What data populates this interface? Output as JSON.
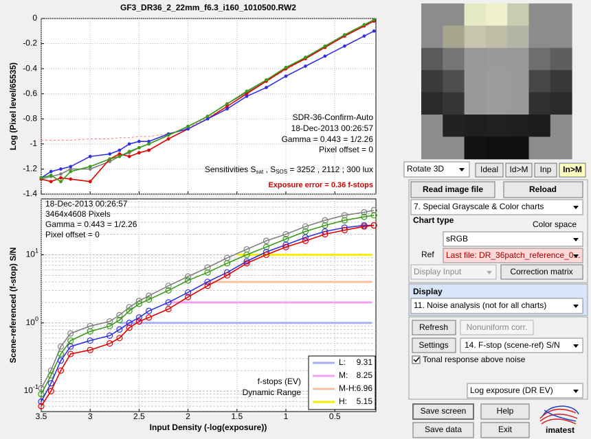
{
  "window": {
    "rotate": "Rotate 3D",
    "ideal": "Ideal",
    "idm": "Id>M",
    "inp": "Inp",
    "inm": "In>M",
    "read": "Read image file",
    "reload": "Reload",
    "chart_menu": "7.  Special Grayscale & Color charts",
    "chart_type": "Chart type",
    "color_space": "Color space",
    "srgb": "sRGB",
    "ref": "Ref",
    "ref_file": "Last file: DR_36patch_reference_0...",
    "display_input": "Display Input",
    "correction": "Correction matrix",
    "display": "Display",
    "display_menu": "11. Noise analysis (not for all charts)",
    "refresh": "Refresh",
    "nonuniform": "Nonuniform corr.",
    "settings": "Settings",
    "settings_menu": "14. F-stop (scene-ref) S/N",
    "tonal": "Tonal response above noise",
    "log_exposure": "Log exposure (DR EV)",
    "save_screen": "Save screen",
    "help": "Help",
    "save_data": "Save data",
    "exit": "Exit",
    "logo": "imatest"
  },
  "chart_data": [
    {
      "type": "line",
      "title": "GF3_DR36_2_22mm_f6.3_i160_1010500.RW2",
      "ylabel": "Log (Pixel level/65535)",
      "xlim": [
        3.5,
        0.08
      ],
      "ylim": [
        -1.4,
        0
      ],
      "xticks": [
        3.5,
        3,
        2.5,
        2,
        1.5,
        1,
        0.5
      ],
      "yticks": [
        0,
        -0.2,
        -0.4,
        -0.6,
        -0.8,
        -1,
        -1.2,
        -1.4
      ],
      "grid": true,
      "x": [
        3.5,
        3.4,
        3.3,
        3.2,
        3.0,
        2.8,
        2.7,
        2.6,
        2.5,
        2.4,
        2.2,
        2.0,
        1.8,
        1.6,
        1.4,
        1.2,
        1.0,
        0.8,
        0.6,
        0.4,
        0.2,
        0.1
      ],
      "series": [
        {
          "name": "fit",
          "color": "#f08080",
          "dashed": true,
          "values": [
            -0.97,
            -0.97,
            -0.97,
            -0.97,
            -0.96,
            -0.96,
            -0.95,
            -0.95,
            -0.94,
            -0.94,
            -0.92,
            -0.87,
            -0.79,
            -0.7,
            -0.6,
            -0.5,
            -0.41,
            -0.32,
            -0.23,
            -0.14,
            -0.06,
            -0.02
          ]
        },
        {
          "name": "gray",
          "color": "#808080",
          "values": [
            -1.28,
            -1.26,
            -1.24,
            -1.2,
            -1.2,
            -1.14,
            -1.1,
            -1.07,
            -1.03,
            -1.0,
            -0.93,
            -0.86,
            -0.78,
            -0.68,
            -0.59,
            -0.49,
            -0.4,
            -0.31,
            -0.22,
            -0.13,
            -0.05,
            -0.02
          ]
        },
        {
          "name": "red",
          "color": "#e00000",
          "values": [
            -1.28,
            -1.3,
            -1.27,
            -1.28,
            -1.3,
            -1.12,
            -1.08,
            -1.1,
            -1.07,
            -1.05,
            -0.96,
            -0.88,
            -0.8,
            -0.7,
            -0.6,
            -0.5,
            -0.4,
            -0.32,
            -0.23,
            -0.14,
            -0.06,
            -0.02
          ]
        },
        {
          "name": "blue",
          "color": "#3030e0",
          "values": [
            -1.27,
            -1.22,
            -1.2,
            -1.18,
            -1.1,
            -1.08,
            -1.05,
            -1.0,
            -0.98,
            -0.98,
            -0.92,
            -0.88,
            -0.8,
            -0.72,
            -0.62,
            -0.55,
            -0.46,
            -0.38,
            -0.3,
            -0.22,
            -0.14,
            -0.1
          ]
        },
        {
          "name": "green",
          "color": "#3a9a1a",
          "values": [
            -1.27,
            -1.25,
            -1.3,
            -1.22,
            -1.18,
            -1.12,
            -1.1,
            -1.06,
            -1.03,
            -1.0,
            -0.93,
            -0.86,
            -0.78,
            -0.68,
            -0.58,
            -0.49,
            -0.39,
            -0.31,
            -0.22,
            -0.13,
            -0.05,
            -0.01
          ]
        }
      ],
      "annotations": {
        "chart": "SDR-36-Confirm-Auto",
        "date": "18-Dec-2013 00:26:57",
        "gamma": "Gamma = 0.443 = 1/2.26",
        "offset": "Pixel offset = 0",
        "sens": [
          "Sensitivities S",
          "sat",
          " , S",
          "SOS",
          " = 3252 ,  2112 ;  300 lux"
        ],
        "error": "Exposure error = 0.36 f-stops"
      }
    },
    {
      "type": "line",
      "log_y": true,
      "xlabel": "Input Density (-log(exposure))",
      "ylabel": "Scene-referenced (f-stop) S/N",
      "xlim": [
        3.5,
        0.08
      ],
      "ylim": [
        0.05,
        66
      ],
      "xticks": [
        3.5,
        3,
        2.5,
        2,
        1.5,
        1,
        0.5
      ],
      "yticks": [
        {
          "value": 0.1,
          "label": "10",
          "exponent": "-1"
        },
        {
          "value": 1,
          "label": "10",
          "exponent": "0"
        },
        {
          "value": 10,
          "label": "10",
          "exponent": "1"
        }
      ],
      "yminor": [
        0.06,
        0.07,
        0.08,
        0.09,
        0.2,
        0.3,
        0.4,
        0.5,
        0.6,
        0.7,
        0.8,
        0.9,
        2,
        3,
        4,
        5,
        6,
        7,
        8,
        9,
        20,
        30,
        40,
        50,
        60
      ],
      "grid": true,
      "x": [
        3.5,
        3.4,
        3.3,
        3.2,
        3.0,
        2.8,
        2.7,
        2.6,
        2.5,
        2.4,
        2.2,
        2.0,
        1.8,
        1.6,
        1.4,
        1.2,
        1.0,
        0.8,
        0.6,
        0.4,
        0.2,
        0.1
      ],
      "series": [
        {
          "name": "gray",
          "color": "#808080",
          "values": [
            0.11,
            0.2,
            0.45,
            0.7,
            0.9,
            1.05,
            1.3,
            1.7,
            2.1,
            2.5,
            3.5,
            4.8,
            6.5,
            9,
            12,
            16,
            20,
            26,
            32,
            38,
            42,
            45
          ]
        },
        {
          "name": "green",
          "color": "#3a9a1a",
          "values": [
            0.09,
            0.17,
            0.35,
            0.55,
            0.75,
            0.9,
            1.1,
            1.5,
            1.9,
            2.2,
            3.0,
            4.2,
            5.5,
            7.5,
            10,
            13,
            17,
            22,
            27,
            32,
            36,
            38
          ]
        },
        {
          "name": "blue",
          "color": "#3030e0",
          "values": [
            0.07,
            0.13,
            0.28,
            0.45,
            0.55,
            0.65,
            0.8,
            1.0,
            1.2,
            1.5,
            2.0,
            2.8,
            4,
            5.5,
            8,
            11,
            14,
            18,
            22,
            25,
            27,
            27
          ]
        },
        {
          "name": "red",
          "color": "#e00000",
          "values": [
            0.06,
            0.1,
            0.2,
            0.35,
            0.4,
            0.5,
            0.6,
            0.85,
            1.05,
            1.2,
            1.6,
            2.4,
            3.5,
            5,
            7.5,
            10,
            13,
            16,
            20,
            23,
            26,
            27
          ]
        }
      ],
      "dr_levels": [
        {
          "name": "L:",
          "value": 9.31,
          "level": 1,
          "start": 2.7,
          "color": "#a8b0f0"
        },
        {
          "name": "M:",
          "value": 8.25,
          "level": 2,
          "start": 2.2,
          "color": "#f0a0f0"
        },
        {
          "name": "M-H:",
          "value": 6.96,
          "level": 4,
          "start": 1.8,
          "color": "#f4c0a0"
        },
        {
          "name": "H:",
          "value": 5.15,
          "level": 10,
          "start": 1.5,
          "color": "#f0f000"
        }
      ],
      "annotations": {
        "date": "18-Dec-2013 00:26:57",
        "pixels": "3464x4608 Pixels",
        "gamma": "Gamma = 0.443 = 1/2.26",
        "offset": "Pixel offset = 0",
        "fstops": "f-stops (EV)",
        "dr": "Dynamic Range"
      }
    }
  ]
}
